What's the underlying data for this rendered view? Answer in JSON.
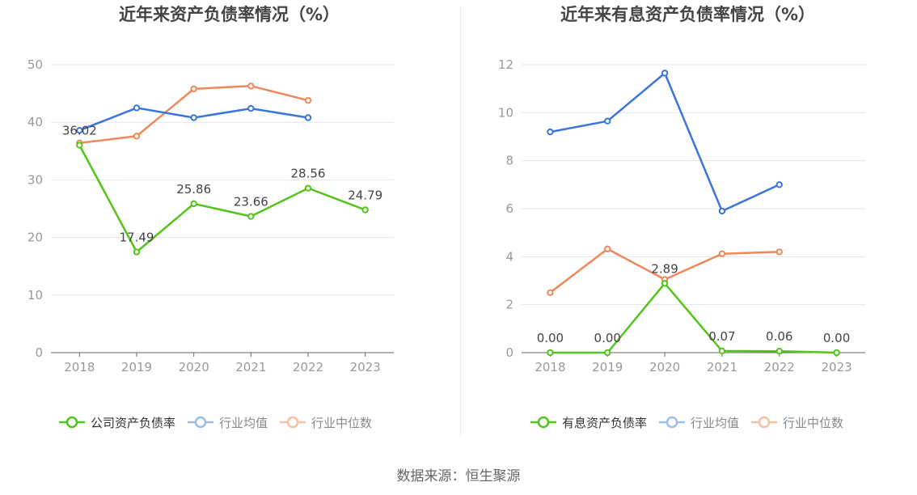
{
  "colors": {
    "green": "#52c41a",
    "blue": "#3a75dc",
    "orange": "#f0875a",
    "grid": "#e3e6ee",
    "tick": "#999999",
    "axis": "#666666"
  },
  "source_label": "数据来源：恒生聚源",
  "chart_data": [
    {
      "type": "line",
      "title": "近年来资产负债率情况（%）",
      "categories": [
        "2018",
        "2019",
        "2020",
        "2021",
        "2022",
        "2023"
      ],
      "ylim": [
        0,
        50
      ],
      "yticks": [
        "0",
        "10",
        "20",
        "30",
        "40",
        "50"
      ],
      "grid": true,
      "legend_position": "bottom",
      "series": [
        {
          "name": "公司资产负债率",
          "color": "#52c41a",
          "values": [
            36.02,
            17.49,
            25.86,
            23.66,
            28.56,
            24.79
          ],
          "labels": [
            "36.02",
            "17.49",
            "25.86",
            "23.66",
            "28.56",
            "24.79"
          ]
        },
        {
          "name": "行业均值",
          "color": "#3a75dc",
          "values": [
            38.6,
            42.5,
            40.8,
            42.4,
            40.8,
            null
          ]
        },
        {
          "name": "行业中位数",
          "color": "#f0875a",
          "values": [
            36.4,
            37.6,
            45.8,
            46.3,
            43.8,
            null
          ]
        }
      ]
    },
    {
      "type": "line",
      "title": "近年来有息资产负债率情况（%）",
      "categories": [
        "2018",
        "2019",
        "2020",
        "2021",
        "2022",
        "2023"
      ],
      "ylim": [
        0,
        12
      ],
      "yticks": [
        "0",
        "2",
        "4",
        "6",
        "8",
        "10",
        "12"
      ],
      "grid": true,
      "legend_position": "bottom",
      "series": [
        {
          "name": "有息资产负债率",
          "color": "#52c41a",
          "values": [
            0.0,
            0.0,
            2.89,
            0.07,
            0.06,
            0.0
          ],
          "labels": [
            "0.00",
            "0.00",
            "2.89",
            "0.07",
            "0.06",
            "0.00"
          ]
        },
        {
          "name": "行业均值",
          "color": "#3a75dc",
          "values": [
            9.2,
            9.65,
            11.65,
            5.9,
            7.0,
            null
          ]
        },
        {
          "name": "行业中位数",
          "color": "#f0875a",
          "values": [
            2.5,
            4.32,
            3.05,
            4.12,
            4.2,
            null
          ]
        }
      ]
    }
  ]
}
